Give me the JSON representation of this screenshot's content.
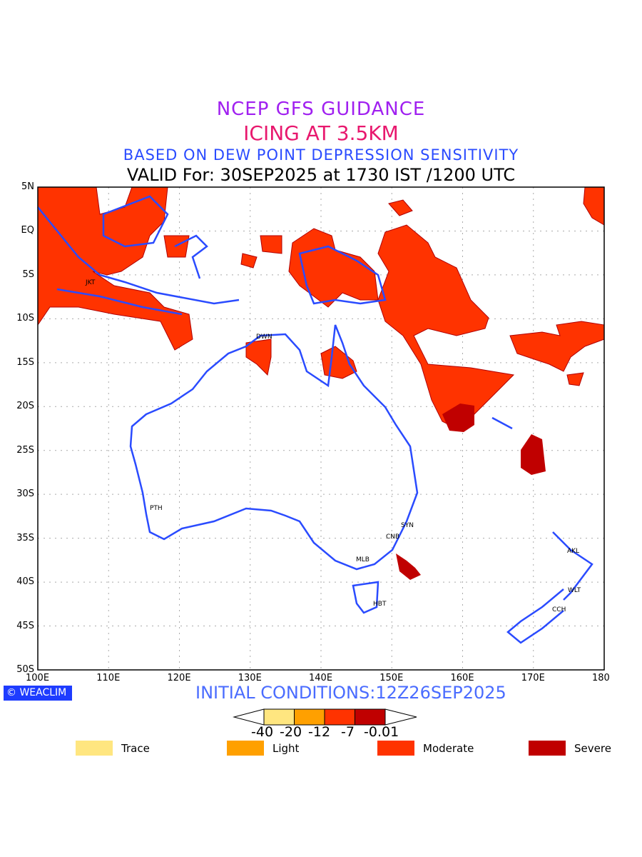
{
  "header": {
    "line1": "NCEP GFS GUIDANCE",
    "line2": "ICING AT 3.5KM",
    "line3": "BASED ON DEW POINT DEPRESSION SENSITIVITY",
    "line4": "VALID For: 30SEP2025 at 1730 IST /1200 UTC"
  },
  "axes": {
    "lat_labels": [
      "5N",
      "EQ",
      "5S",
      "10S",
      "15S",
      "20S",
      "25S",
      "30S",
      "35S",
      "40S",
      "45S",
      "50S"
    ],
    "lon_labels": [
      "100E",
      "110E",
      "120E",
      "130E",
      "140E",
      "150E",
      "160E",
      "170E",
      "180"
    ]
  },
  "cities": [
    "JKT",
    "DWN",
    "PTH",
    "SYN",
    "CNB",
    "MLB",
    "HBT",
    "AKL",
    "WLT",
    "CCH"
  ],
  "footer": {
    "logo": "WEACLIM",
    "initial": "INITIAL CONDITIONS:12Z26SEP2025"
  },
  "colorbar": {
    "labels": [
      "-40",
      "-20",
      "-12",
      "-7",
      "-0.01"
    ],
    "colors": [
      "#ffe680",
      "#ffa000",
      "#ff3300",
      "#c00000"
    ]
  },
  "legend": [
    {
      "label": "Trace",
      "color": "#ffe680"
    },
    {
      "label": "Light",
      "color": "#ffa000"
    },
    {
      "label": "Moderate",
      "color": "#ff3300"
    },
    {
      "label": "Severe",
      "color": "#c00000"
    }
  ]
}
